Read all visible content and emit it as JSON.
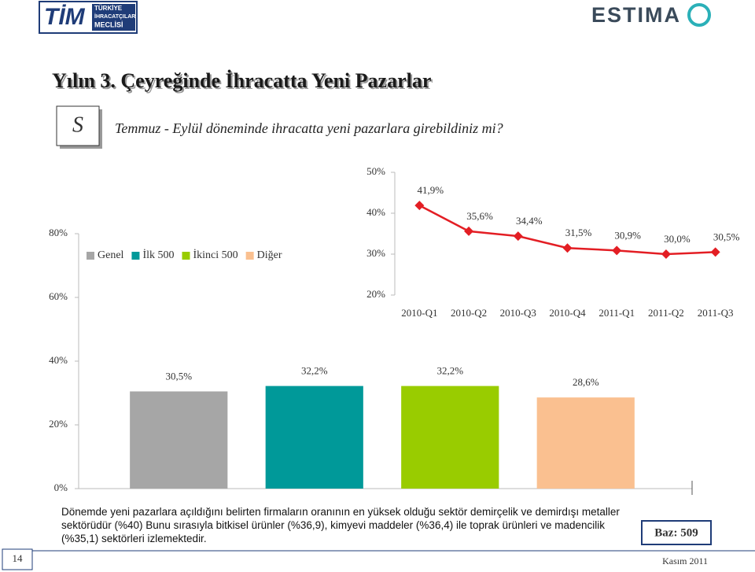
{
  "logos": {
    "left": "TİM",
    "left_sub": [
      "TÜRKİYE",
      "İHRACATÇILAR",
      "MECLİSİ"
    ],
    "right": "ESTIMA"
  },
  "title": "Yılın 3. Çeyreğinde İhracatta Yeni Pazarlar",
  "question_icon": "S",
  "question": "Temmuz - Eylül döneminde ihracatta yeni pazarlara girebildiniz mi?",
  "chart_data": [
    {
      "type": "bar",
      "categories": [
        "Genel",
        "İlk 500",
        "İkinci 500",
        "Diğer"
      ],
      "values": [
        30.5,
        32.2,
        32.2,
        28.6
      ],
      "value_labels": [
        "30,5%",
        "32,2%",
        "32,2%",
        "28,6%"
      ],
      "colors": [
        "#a6a6a6",
        "#009999",
        "#99cc00",
        "#fac090"
      ],
      "ylim": [
        0,
        80
      ],
      "yticks": [
        {
          "value": 0,
          "label": "0%"
        },
        {
          "value": 20,
          "label": "20%"
        },
        {
          "value": 40,
          "label": "40%"
        },
        {
          "value": 60,
          "label": "60%"
        },
        {
          "value": 80,
          "label": "80%"
        }
      ],
      "legend": "top-left"
    },
    {
      "type": "line",
      "categories": [
        "2010-Q1",
        "2010-Q2",
        "2010-Q3",
        "2010-Q4",
        "2011-Q1",
        "2011-Q2",
        "2011-Q3"
      ],
      "values": [
        41.9,
        35.6,
        34.4,
        31.5,
        30.9,
        30.0,
        30.5
      ],
      "value_labels": [
        "41,9%",
        "35,6%",
        "34,4%",
        "31,5%",
        "30,9%",
        "30,0%",
        "30,5%"
      ],
      "color": "#e31e24",
      "ylim": [
        20,
        50
      ],
      "yticks": [
        {
          "value": 20,
          "label": "20%"
        },
        {
          "value": 30,
          "label": "30%"
        },
        {
          "value": 40,
          "label": "40%"
        },
        {
          "value": 50,
          "label": "50%"
        }
      ]
    }
  ],
  "note": "Dönemde yeni pazarlara açıldığını belirten firmaların oranının en yüksek olduğu sektör demirçelik ve demirdışı metaller sektörüdür (%40) Bunu sırasıyla bitkisel ürünler (%36,9), kimyevi maddeler (%36,4) ile toprak ürünleri ve madencilik (%35,1) sektörleri izlemektedir.",
  "base": "Baz: 509",
  "page_number": "14",
  "date": "Kasım 2011"
}
